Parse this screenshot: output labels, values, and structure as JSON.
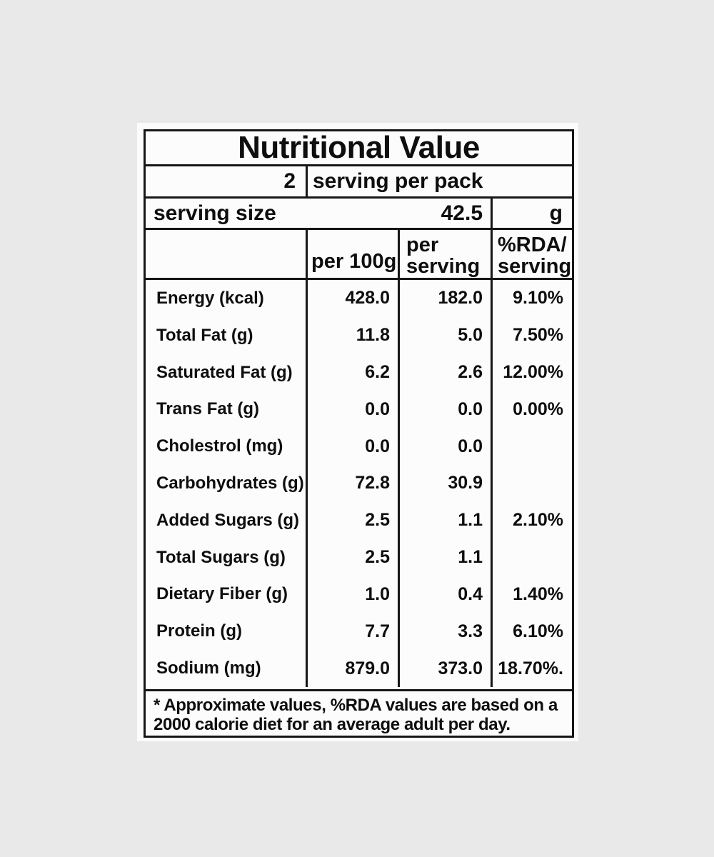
{
  "colors": {
    "page_background": "#e9e9e9",
    "label_background": "#fbfbfb",
    "border": "#161616",
    "text": "#0e0e0e"
  },
  "table": {
    "title": "Nutritional Value",
    "servings": {
      "count": "2",
      "label": "serving per pack"
    },
    "serving_size": {
      "label": "serving size",
      "value": "42.5",
      "unit": "g"
    },
    "columns": {
      "per_100g": "per 100g",
      "per_serving_line1": "per",
      "per_serving_line2": "serving",
      "rda_line1": "%RDA/",
      "rda_line2": "serving"
    },
    "rows": [
      {
        "label": "Energy (kcal)",
        "per_100g": "428.0",
        "per_serving": "182.0",
        "rda": "9.10%"
      },
      {
        "label": "Total Fat (g)",
        "per_100g": "11.8",
        "per_serving": "5.0",
        "rda": "7.50%"
      },
      {
        "label": "Saturated Fat (g)",
        "per_100g": "6.2",
        "per_serving": "2.6",
        "rda": "12.00%"
      },
      {
        "label": "Trans Fat (g)",
        "per_100g": "0.0",
        "per_serving": "0.0",
        "rda": "0.00%"
      },
      {
        "label": "Cholestrol (mg)",
        "per_100g": "0.0",
        "per_serving": "0.0",
        "rda": ""
      },
      {
        "label": "Carbohydrates (g)",
        "per_100g": "72.8",
        "per_serving": "30.9",
        "rda": ""
      },
      {
        "label": "Added Sugars (g)",
        "per_100g": "2.5",
        "per_serving": "1.1",
        "rda": "2.10%"
      },
      {
        "label": "Total Sugars (g)",
        "per_100g": "2.5",
        "per_serving": "1.1",
        "rda": ""
      },
      {
        "label": "Dietary Fiber (g)",
        "per_100g": "1.0",
        "per_serving": "0.4",
        "rda": "1.40%"
      },
      {
        "label": "Protein (g)",
        "per_100g": "7.7",
        "per_serving": "3.3",
        "rda": "6.10%"
      },
      {
        "label": "Sodium (mg)",
        "per_100g": "879.0",
        "per_serving": "373.0",
        "rda": "18.70%."
      }
    ],
    "footnote_line1": "* Approximate values, %RDA values are based on a",
    "footnote_line2": "2000 calorie diet for an average adult per day."
  }
}
